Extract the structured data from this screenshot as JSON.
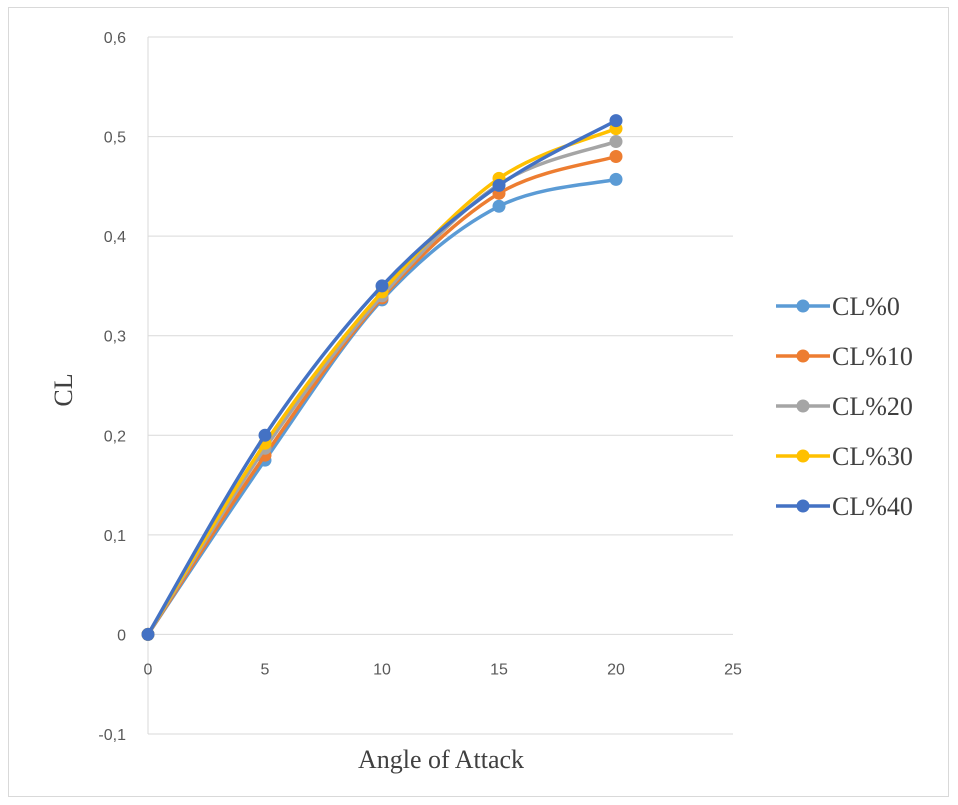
{
  "chart_data": {
    "type": "line",
    "smooth": true,
    "xlabel": "Angle of Attack",
    "ylabel": "CL",
    "xlim": [
      0,
      25
    ],
    "ylim": [
      -0.1,
      0.6
    ],
    "xticks": [
      0,
      5,
      10,
      15,
      20,
      25
    ],
    "yticks": [
      -0.1,
      0,
      0.1,
      0.2,
      0.3,
      0.4,
      0.5,
      0.6
    ],
    "xtick_labels": [
      "0",
      "5",
      "10",
      "15",
      "20",
      "25"
    ],
    "ytick_labels": [
      "-0,1",
      "0",
      "0,1",
      "0,2",
      "0,3",
      "0,4",
      "0,5",
      "0,6"
    ],
    "grid": "horizontal",
    "legend_position": "right",
    "x": [
      0,
      5,
      10,
      15,
      20
    ],
    "series": [
      {
        "name": "CL%0",
        "color": "#5b9bd5",
        "values": [
          0,
          0.175,
          0.336,
          0.43,
          0.457
        ]
      },
      {
        "name": "CL%10",
        "color": "#ed7d31",
        "values": [
          0,
          0.18,
          0.338,
          0.443,
          0.48
        ]
      },
      {
        "name": "CL%20",
        "color": "#a5a5a5",
        "values": [
          0,
          0.187,
          0.34,
          0.452,
          0.495
        ]
      },
      {
        "name": "CL%30",
        "color": "#ffc000",
        "values": [
          0,
          0.192,
          0.344,
          0.458,
          0.508
        ]
      },
      {
        "name": "CL%40",
        "color": "#4472c4",
        "values": [
          0,
          0.2,
          0.35,
          0.451,
          0.516
        ]
      }
    ]
  }
}
